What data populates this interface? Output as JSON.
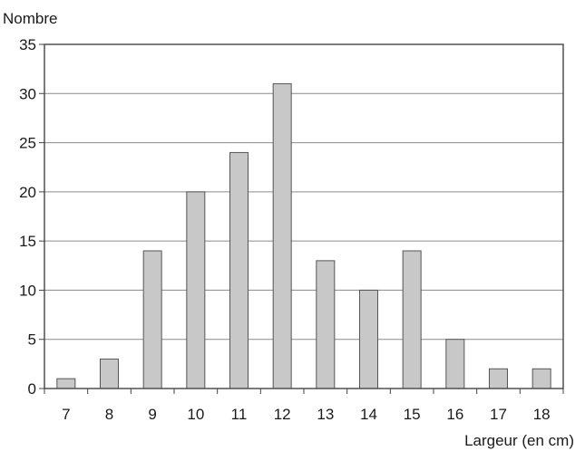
{
  "chart_data": {
    "type": "bar",
    "title": "",
    "ylabel": "Nombre",
    "xlabel": "Largeur (en cm)",
    "categories": [
      "7",
      "8",
      "9",
      "10",
      "11",
      "12",
      "13",
      "14",
      "15",
      "16",
      "17",
      "18"
    ],
    "values": [
      1,
      3,
      14,
      20,
      24,
      31,
      13,
      10,
      14,
      5,
      2,
      2
    ],
    "ylim": [
      0,
      35
    ],
    "yticks": [
      0,
      5,
      10,
      15,
      20,
      25,
      30,
      35
    ],
    "grid": true,
    "legend": "none",
    "colors": {
      "bar_fill": "#c8c8c8",
      "bar_stroke": "#555555",
      "grid": "#8a8a8a",
      "axis": "#444444"
    }
  }
}
